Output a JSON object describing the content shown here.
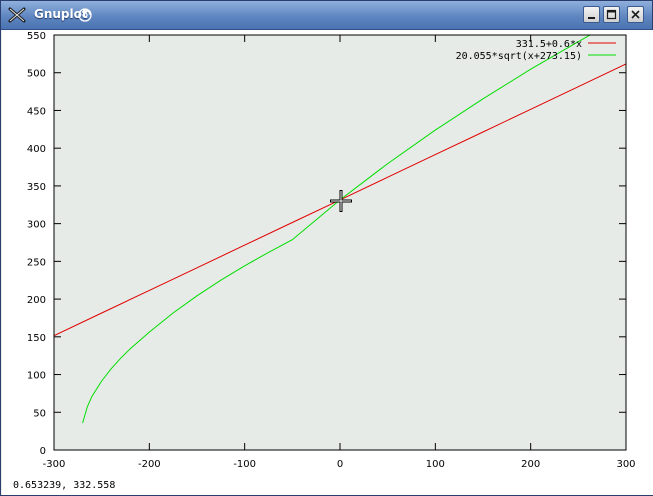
{
  "window": {
    "title": "Gnuplot"
  },
  "status": {
    "coordinates": "0.653239,  332.558"
  },
  "chart_data": {
    "type": "line",
    "title": "",
    "xlabel": "",
    "ylabel": "",
    "xlim": [
      -300,
      300
    ],
    "ylim": [
      0,
      550
    ],
    "xticks": [
      "-300",
      "-200",
      "-100",
      "0",
      "100",
      "200",
      "300"
    ],
    "yticks": [
      "0",
      "50",
      "100",
      "150",
      "200",
      "250",
      "300",
      "350",
      "400",
      "450",
      "500",
      "550"
    ],
    "grid": false,
    "legend_position": "top-right",
    "series": [
      {
        "name": "331.5+0.6*x",
        "color": "#e00000",
        "x": [
          -300,
          -250,
          -200,
          -150,
          -100,
          -50,
          0,
          50,
          100,
          150,
          200,
          250,
          300
        ],
        "y": [
          151.5,
          181.5,
          211.5,
          241.5,
          271.5,
          301.5,
          331.5,
          361.5,
          391.5,
          421.5,
          451.5,
          481.5,
          511.5
        ]
      },
      {
        "name": "20.055*sqrt(x+273.15)",
        "color": "#00dd00",
        "x": [
          -270,
          -265,
          -260,
          -250,
          -240,
          -230,
          -220,
          -200,
          -175,
          -150,
          -125,
          -100,
          -75,
          -50,
          0,
          50,
          100,
          150,
          200,
          250,
          300
        ],
        "y": [
          35.6,
          57.6,
          71.4,
          91.4,
          107.7,
          121.7,
          134.2,
          156.3,
          181.7,
          204.4,
          225.0,
          244.1,
          261.9,
          278.7,
          331.5,
          379.6,
          423.9,
          465.5,
          504.7,
          541.1,
          577.3
        ]
      }
    ]
  }
}
